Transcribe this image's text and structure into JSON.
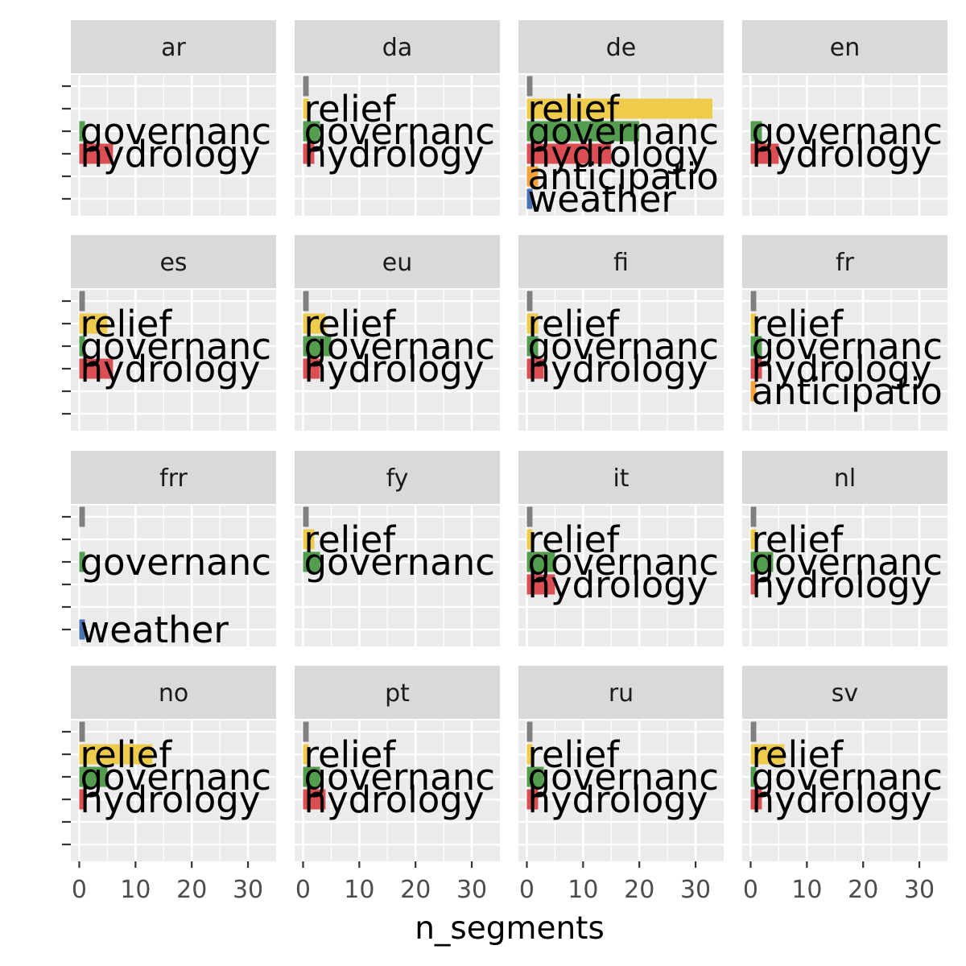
{
  "chart_data": {
    "type": "bar",
    "orientation": "horizontal",
    "facet_layout": "4x4 grid",
    "xlabel": "n_segments",
    "ylabel": "",
    "xlim": [
      -1.5,
      35
    ],
    "xticks": [
      0,
      10,
      20,
      30
    ],
    "grid": true,
    "category_slots": [
      "(gray)",
      "relief",
      "governance",
      "hydrology",
      "anticipation",
      "weather"
    ],
    "colors": {
      "(gray)": "#808080",
      "relief": "#EFCB4B",
      "governance": "#549D4F",
      "hydrology": "#DB4E54",
      "anticipation": "#F4A33A",
      "weather": "#4A73B4"
    },
    "facets": [
      {
        "name": "ar",
        "slots": 6,
        "bars": [
          {
            "cat": "governance",
            "value": 1,
            "label": "governanc"
          },
          {
            "cat": "hydrology",
            "value": 6,
            "label": "hydrology"
          }
        ]
      },
      {
        "name": "da",
        "slots": 6,
        "bars": [
          {
            "cat": "(gray)",
            "value": 1,
            "label": ""
          },
          {
            "cat": "relief",
            "value": 1,
            "label": "relief"
          },
          {
            "cat": "governance",
            "value": 3,
            "label": "governanc"
          },
          {
            "cat": "hydrology",
            "value": 2,
            "label": "hydrology"
          }
        ]
      },
      {
        "name": "de",
        "slots": 6,
        "bars": [
          {
            "cat": "(gray)",
            "value": 1,
            "label": ""
          },
          {
            "cat": "relief",
            "value": 33,
            "label": "relief"
          },
          {
            "cat": "governance",
            "value": 20,
            "label": "governanc"
          },
          {
            "cat": "hydrology",
            "value": 15,
            "label": "hydrology"
          },
          {
            "cat": "anticipation",
            "value": 2,
            "label": "anticipatio"
          },
          {
            "cat": "weather",
            "value": 1,
            "label": "weather"
          }
        ]
      },
      {
        "name": "en",
        "slots": 6,
        "bars": [
          {
            "cat": "governance",
            "value": 2,
            "label": "governanc"
          },
          {
            "cat": "hydrology",
            "value": 5,
            "label": "hydrology"
          }
        ]
      },
      {
        "name": "es",
        "slots": 6,
        "bars": [
          {
            "cat": "(gray)",
            "value": 1,
            "label": ""
          },
          {
            "cat": "relief",
            "value": 5,
            "label": "relief"
          },
          {
            "cat": "governance",
            "value": 1,
            "label": "governanc"
          },
          {
            "cat": "hydrology",
            "value": 6,
            "label": "hydrology"
          }
        ]
      },
      {
        "name": "eu",
        "slots": 6,
        "bars": [
          {
            "cat": "(gray)",
            "value": 1,
            "label": ""
          },
          {
            "cat": "relief",
            "value": 4,
            "label": "relief"
          },
          {
            "cat": "governance",
            "value": 5,
            "label": "governanc"
          },
          {
            "cat": "hydrology",
            "value": 3,
            "label": "hydrology"
          }
        ]
      },
      {
        "name": "fi",
        "slots": 6,
        "bars": [
          {
            "cat": "(gray)",
            "value": 1,
            "label": ""
          },
          {
            "cat": "relief",
            "value": 2,
            "label": "relief"
          },
          {
            "cat": "governance",
            "value": 2,
            "label": "governanc"
          },
          {
            "cat": "hydrology",
            "value": 3,
            "label": "hydrology"
          }
        ]
      },
      {
        "name": "fr",
        "slots": 6,
        "bars": [
          {
            "cat": "(gray)",
            "value": 1,
            "label": ""
          },
          {
            "cat": "relief",
            "value": 1,
            "label": "relief"
          },
          {
            "cat": "governance",
            "value": 2,
            "label": "governanc"
          },
          {
            "cat": "hydrology",
            "value": 2,
            "label": "hydrology"
          },
          {
            "cat": "anticipation",
            "value": 1,
            "label": "anticipatio"
          }
        ]
      },
      {
        "name": "frr",
        "slots": 6,
        "bars": [
          {
            "cat": "(gray)",
            "value": 1,
            "label": ""
          },
          {
            "cat": "governance",
            "value": 1,
            "label": "governanc"
          },
          {
            "cat": "weather",
            "value": 1,
            "label": "weather"
          }
        ]
      },
      {
        "name": "fy",
        "slots": 6,
        "bars": [
          {
            "cat": "(gray)",
            "value": 1,
            "label": ""
          },
          {
            "cat": "relief",
            "value": 2,
            "label": "relief"
          },
          {
            "cat": "governance",
            "value": 3,
            "label": "governanc"
          }
        ]
      },
      {
        "name": "it",
        "slots": 6,
        "bars": [
          {
            "cat": "(gray)",
            "value": 1,
            "label": ""
          },
          {
            "cat": "relief",
            "value": 1,
            "label": "relief"
          },
          {
            "cat": "governance",
            "value": 5,
            "label": "governanc"
          },
          {
            "cat": "hydrology",
            "value": 5,
            "label": "hydrology"
          }
        ]
      },
      {
        "name": "nl",
        "slots": 6,
        "bars": [
          {
            "cat": "(gray)",
            "value": 1,
            "label": ""
          },
          {
            "cat": "relief",
            "value": 1,
            "label": "relief"
          },
          {
            "cat": "governance",
            "value": 4,
            "label": "governanc"
          },
          {
            "cat": "hydrology",
            "value": 1,
            "label": "hydrology"
          }
        ]
      },
      {
        "name": "no",
        "slots": 6,
        "bars": [
          {
            "cat": "(gray)",
            "value": 1,
            "label": ""
          },
          {
            "cat": "relief",
            "value": 13,
            "label": "relief"
          },
          {
            "cat": "governance",
            "value": 5,
            "label": "governanc"
          },
          {
            "cat": "hydrology",
            "value": 1,
            "label": "hydrology"
          }
        ]
      },
      {
        "name": "pt",
        "slots": 6,
        "bars": [
          {
            "cat": "(gray)",
            "value": 1,
            "label": ""
          },
          {
            "cat": "relief",
            "value": 1,
            "label": "relief"
          },
          {
            "cat": "governance",
            "value": 3,
            "label": "governanc"
          },
          {
            "cat": "hydrology",
            "value": 4,
            "label": "hydrology"
          }
        ]
      },
      {
        "name": "ru",
        "slots": 6,
        "bars": [
          {
            "cat": "(gray)",
            "value": 1,
            "label": ""
          },
          {
            "cat": "relief",
            "value": 1,
            "label": "relief"
          },
          {
            "cat": "governance",
            "value": 3,
            "label": "governanc"
          },
          {
            "cat": "hydrology",
            "value": 2,
            "label": "hydrology"
          }
        ]
      },
      {
        "name": "sv",
        "slots": 6,
        "bars": [
          {
            "cat": "(gray)",
            "value": 1,
            "label": ""
          },
          {
            "cat": "relief",
            "value": 6,
            "label": "relief"
          },
          {
            "cat": "governance",
            "value": 1,
            "label": "governanc"
          },
          {
            "cat": "hydrology",
            "value": 2,
            "label": "hydrology"
          }
        ]
      }
    ]
  }
}
